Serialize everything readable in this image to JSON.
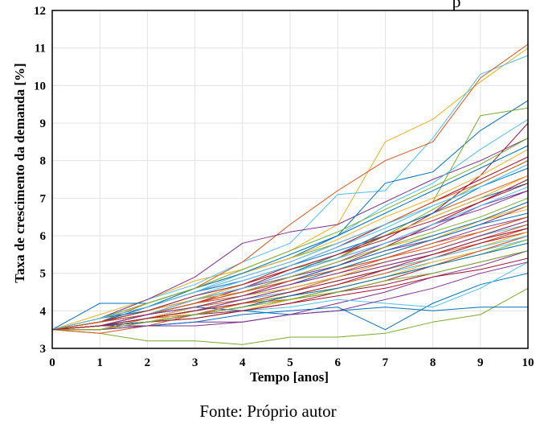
{
  "top_fragment": "p",
  "caption": "Fonte: Próprio autor",
  "chart_data": {
    "type": "line",
    "xlabel": "Tempo [anos]",
    "ylabel": "Taxa de crescimento da demanda [%]",
    "xlim": [
      0,
      10
    ],
    "ylim": [
      3,
      12
    ],
    "xticks": [
      "0",
      "1",
      "2",
      "3",
      "4",
      "5",
      "6",
      "7",
      "8",
      "9",
      "10"
    ],
    "yticks": [
      "3",
      "4",
      "5",
      "6",
      "7",
      "8",
      "9",
      "10",
      "11",
      "12"
    ],
    "grid": true,
    "x": [
      0,
      1,
      2,
      3,
      4,
      5,
      6,
      7,
      8,
      9,
      10
    ],
    "series": [
      {
        "color": "#0072BD",
        "values": [
          3.5,
          3.8,
          4.1,
          4.5,
          4.8,
          5.2,
          5.6,
          6.0,
          6.5,
          7.0,
          7.4
        ]
      },
      {
        "color": "#D95319",
        "values": [
          3.5,
          3.6,
          3.9,
          4.2,
          4.6,
          5.0,
          5.4,
          6.1,
          6.6,
          7.1,
          7.6
        ]
      },
      {
        "color": "#EDB120",
        "values": [
          3.5,
          3.9,
          4.3,
          4.8,
          5.1,
          5.6,
          6.3,
          8.5,
          9.1,
          10.1,
          11.0
        ]
      },
      {
        "color": "#7E2F8E",
        "values": [
          3.5,
          3.7,
          4.0,
          4.3,
          4.5,
          4.9,
          5.3,
          5.8,
          6.2,
          6.8,
          7.2
        ]
      },
      {
        "color": "#77AC30",
        "values": [
          3.5,
          3.4,
          3.2,
          3.2,
          3.1,
          3.3,
          3.3,
          3.4,
          3.7,
          3.9,
          4.6
        ]
      },
      {
        "color": "#4DBEEE",
        "values": [
          3.5,
          3.8,
          4.3,
          4.7,
          5.3,
          5.8,
          7.1,
          7.2,
          8.6,
          10.3,
          10.8
        ]
      },
      {
        "color": "#A2142F",
        "values": [
          3.5,
          3.6,
          3.9,
          4.1,
          4.4,
          4.8,
          5.2,
          5.7,
          6.3,
          6.9,
          7.5
        ]
      },
      {
        "color": "#0072BD",
        "values": [
          3.5,
          3.6,
          3.8,
          4.1,
          4.0,
          3.9,
          4.0,
          4.1,
          4.0,
          4.1,
          4.1
        ]
      },
      {
        "color": "#D95319",
        "values": [
          3.5,
          3.7,
          4.2,
          4.6,
          5.3,
          6.3,
          7.2,
          8.0,
          8.5,
          10.2,
          11.1
        ]
      },
      {
        "color": "#EDB120",
        "values": [
          3.5,
          3.6,
          3.8,
          4.1,
          4.4,
          4.7,
          5.1,
          5.5,
          5.9,
          6.4,
          6.9
        ]
      },
      {
        "color": "#7E2F8E",
        "values": [
          3.5,
          3.8,
          4.3,
          4.9,
          5.8,
          6.1,
          6.3,
          6.9,
          7.5,
          8.0,
          8.6
        ]
      },
      {
        "color": "#77AC30",
        "values": [
          3.5,
          3.7,
          4.0,
          4.4,
          4.7,
          5.1,
          5.4,
          6.0,
          6.7,
          7.4,
          8.0
        ]
      },
      {
        "color": "#4DBEEE",
        "values": [
          3.5,
          3.5,
          3.7,
          3.9,
          4.2,
          4.4,
          4.7,
          5.0,
          5.3,
          5.6,
          5.9
        ]
      },
      {
        "color": "#A2142F",
        "values": [
          3.5,
          3.6,
          3.7,
          3.8,
          4.0,
          4.3,
          4.5,
          4.8,
          5.2,
          5.6,
          6.0
        ]
      },
      {
        "color": "#0072BD",
        "values": [
          3.5,
          4.2,
          4.2,
          4.6,
          5.0,
          5.4,
          6.0,
          7.4,
          7.7,
          8.8,
          9.6
        ]
      },
      {
        "color": "#D95319",
        "values": [
          3.5,
          3.4,
          3.6,
          3.9,
          4.2,
          4.4,
          4.7,
          5.0,
          5.4,
          5.8,
          6.2
        ]
      },
      {
        "color": "#EDB120",
        "values": [
          3.5,
          3.7,
          4.0,
          4.3,
          4.6,
          4.9,
          5.3,
          5.7,
          6.0,
          6.4,
          6.7
        ]
      },
      {
        "color": "#7E2F8E",
        "values": [
          3.5,
          3.6,
          3.6,
          3.7,
          3.7,
          3.9,
          4.2,
          4.5,
          4.9,
          5.2,
          5.6
        ]
      },
      {
        "color": "#77AC30",
        "values": [
          3.5,
          3.8,
          4.1,
          4.6,
          5.0,
          5.4,
          5.8,
          6.3,
          6.9,
          9.2,
          9.4
        ]
      },
      {
        "color": "#4DBEEE",
        "values": [
          3.5,
          3.6,
          3.9,
          4.1,
          4.4,
          4.6,
          4.9,
          5.3,
          5.6,
          6.0,
          6.3
        ]
      },
      {
        "color": "#A2142F",
        "values": [
          3.5,
          3.7,
          3.9,
          4.2,
          4.6,
          5.1,
          5.5,
          5.9,
          6.6,
          7.6,
          9.0
        ]
      },
      {
        "color": "#0072BD",
        "values": [
          3.5,
          3.5,
          3.6,
          3.7,
          3.9,
          4.0,
          4.1,
          3.5,
          4.2,
          4.7,
          5.0
        ]
      },
      {
        "color": "#D95319",
        "values": [
          3.5,
          3.6,
          3.8,
          4.0,
          4.3,
          4.5,
          4.9,
          5.2,
          5.5,
          5.9,
          6.3
        ]
      },
      {
        "color": "#EDB120",
        "values": [
          3.5,
          3.5,
          3.7,
          3.8,
          4.0,
          4.3,
          4.6,
          4.9,
          5.3,
          5.6,
          6.0
        ]
      },
      {
        "color": "#7E2F8E",
        "values": [
          3.5,
          3.7,
          3.9,
          4.3,
          4.6,
          4.9,
          5.2,
          5.6,
          5.9,
          6.3,
          6.8
        ]
      },
      {
        "color": "#77AC30",
        "values": [
          3.5,
          3.6,
          3.8,
          4.0,
          4.3,
          4.6,
          4.9,
          5.3,
          5.6,
          6.0,
          6.4
        ]
      },
      {
        "color": "#4DBEEE",
        "values": [
          3.5,
          3.5,
          3.7,
          3.8,
          4.0,
          4.1,
          4.3,
          4.2,
          4.1,
          4.6,
          5.3
        ]
      },
      {
        "color": "#A2142F",
        "values": [
          3.5,
          3.6,
          3.9,
          4.3,
          4.7,
          5.2,
          5.7,
          6.3,
          6.9,
          7.5,
          8.1
        ]
      },
      {
        "color": "#0072BD",
        "values": [
          3.5,
          3.8,
          4.0,
          4.3,
          4.6,
          5.0,
          5.5,
          6.1,
          6.6,
          7.3,
          7.8
        ]
      },
      {
        "color": "#D95319",
        "values": [
          3.5,
          3.6,
          3.8,
          4.1,
          4.3,
          4.6,
          4.9,
          5.2,
          5.5,
          5.8,
          6.2
        ]
      },
      {
        "color": "#EDB120",
        "values": [
          3.5,
          3.7,
          4.0,
          4.3,
          4.5,
          4.8,
          5.1,
          5.5,
          5.9,
          6.4,
          6.8
        ]
      },
      {
        "color": "#7E2F8E",
        "values": [
          3.5,
          3.5,
          3.6,
          3.6,
          3.7,
          3.9,
          4.0,
          4.3,
          4.6,
          5.0,
          5.3
        ]
      },
      {
        "color": "#77AC30",
        "values": [
          3.5,
          3.6,
          3.8,
          4.0,
          4.2,
          4.4,
          4.6,
          4.9,
          5.2,
          5.5,
          5.9
        ]
      },
      {
        "color": "#4DBEEE",
        "values": [
          3.5,
          3.7,
          4.1,
          4.5,
          5.0,
          5.5,
          6.0,
          6.8,
          7.4,
          8.3,
          9.1
        ]
      },
      {
        "color": "#A2142F",
        "values": [
          3.5,
          3.6,
          3.7,
          3.9,
          4.1,
          4.4,
          4.7,
          5.1,
          5.4,
          5.8,
          6.1
        ]
      },
      {
        "color": "#0072BD",
        "values": [
          3.5,
          3.7,
          3.9,
          4.2,
          4.5,
          4.8,
          5.2,
          5.6,
          6.0,
          6.4,
          6.9
        ]
      },
      {
        "color": "#D95319",
        "values": [
          3.5,
          3.5,
          3.8,
          3.9,
          4.2,
          4.3,
          4.6,
          4.9,
          5.2,
          5.6,
          6.0
        ]
      },
      {
        "color": "#EDB120",
        "values": [
          3.5,
          3.8,
          4.2,
          4.6,
          5.0,
          5.4,
          5.9,
          6.5,
          7.0,
          7.6,
          8.3
        ]
      },
      {
        "color": "#7E2F8E",
        "values": [
          3.5,
          3.6,
          3.9,
          4.2,
          4.5,
          4.8,
          5.1,
          5.4,
          5.8,
          6.2,
          6.5
        ]
      },
      {
        "color": "#77AC30",
        "values": [
          3.5,
          3.6,
          3.7,
          3.9,
          4.1,
          4.3,
          4.6,
          4.9,
          5.2,
          5.5,
          5.8
        ]
      },
      {
        "color": "#4DBEEE",
        "values": [
          3.5,
          3.7,
          4.0,
          4.4,
          4.8,
          5.2,
          5.7,
          6.2,
          6.8,
          7.3,
          7.9
        ]
      },
      {
        "color": "#A2142F",
        "values": [
          3.5,
          3.5,
          3.7,
          3.9,
          4.0,
          4.2,
          4.5,
          4.7,
          5.0,
          5.3,
          5.6
        ]
      },
      {
        "color": "#0072BD",
        "values": [
          3.5,
          3.6,
          3.8,
          4.1,
          4.4,
          4.7,
          5.1,
          5.5,
          5.9,
          6.3,
          6.6
        ]
      },
      {
        "color": "#D95319",
        "values": [
          3.5,
          3.7,
          4.1,
          4.5,
          4.9,
          5.3,
          5.8,
          6.3,
          6.9,
          7.4,
          8.0
        ]
      },
      {
        "color": "#EDB120",
        "values": [
          3.5,
          3.5,
          3.7,
          4.0,
          4.2,
          4.5,
          4.8,
          5.1,
          5.4,
          5.7,
          6.1
        ]
      },
      {
        "color": "#7E2F8E",
        "values": [
          3.5,
          3.7,
          4.0,
          4.3,
          4.6,
          5.0,
          5.4,
          5.8,
          6.3,
          6.7,
          7.2
        ]
      },
      {
        "color": "#77AC30",
        "values": [
          3.5,
          3.6,
          3.9,
          4.2,
          4.5,
          4.9,
          5.3,
          5.7,
          6.1,
          6.5,
          7.0
        ]
      },
      {
        "color": "#4DBEEE",
        "values": [
          3.5,
          3.6,
          3.8,
          4.0,
          4.3,
          4.5,
          4.8,
          5.1,
          5.4,
          5.7,
          6.0
        ]
      },
      {
        "color": "#A2142F",
        "values": [
          3.5,
          3.6,
          3.7,
          3.8,
          4.0,
          4.2,
          4.4,
          4.6,
          4.9,
          5.1,
          5.4
        ]
      },
      {
        "color": "#0072BD",
        "values": [
          3.5,
          3.7,
          4.1,
          4.6,
          5.0,
          5.5,
          6.0,
          6.6,
          7.2,
          7.8,
          8.4
        ]
      },
      {
        "color": "#D95319",
        "values": [
          3.5,
          3.6,
          3.9,
          4.2,
          4.5,
          4.8,
          5.1,
          5.4,
          5.8,
          6.1,
          6.5
        ]
      },
      {
        "color": "#EDB120",
        "values": [
          3.5,
          3.7,
          4.0,
          4.3,
          4.7,
          5.1,
          5.5,
          6.0,
          6.5,
          7.0,
          7.6
        ]
      },
      {
        "color": "#7E2F8E",
        "values": [
          3.5,
          3.6,
          3.8,
          4.0,
          4.3,
          4.6,
          4.9,
          5.2,
          5.5,
          5.9,
          6.2
        ]
      },
      {
        "color": "#77AC30",
        "values": [
          3.5,
          3.8,
          4.2,
          4.6,
          5.1,
          5.6,
          6.1,
          6.7,
          7.3,
          7.9,
          8.6
        ]
      },
      {
        "color": "#4DBEEE",
        "values": [
          3.5,
          3.6,
          3.9,
          4.3,
          4.6,
          5.0,
          5.4,
          5.8,
          6.3,
          6.8,
          7.3
        ]
      },
      {
        "color": "#A2142F",
        "values": [
          3.5,
          3.7,
          4.0,
          4.4,
          4.7,
          5.1,
          5.5,
          6.0,
          6.4,
          6.9,
          7.4
        ]
      },
      {
        "color": "#0072BD",
        "values": [
          3.5,
          3.6,
          3.7,
          3.9,
          4.1,
          4.4,
          4.6,
          4.9,
          5.2,
          5.5,
          5.8
        ]
      },
      {
        "color": "#D95319",
        "values": [
          3.5,
          3.7,
          3.9,
          4.2,
          4.4,
          4.7,
          5.0,
          5.4,
          5.7,
          6.1,
          6.5
        ]
      },
      {
        "color": "#EDB120",
        "values": [
          3.5,
          3.6,
          3.8,
          4.1,
          4.4,
          4.6,
          4.9,
          5.3,
          5.6,
          6.0,
          6.4
        ]
      },
      {
        "color": "#7E2F8E",
        "values": [
          3.5,
          3.6,
          3.9,
          4.1,
          4.4,
          4.7,
          5.0,
          5.3,
          5.6,
          6.0,
          6.4
        ]
      },
      {
        "color": "#77AC30",
        "values": [
          3.5,
          3.5,
          3.7,
          3.9,
          4.1,
          4.3,
          4.5,
          4.8,
          5.0,
          5.3,
          5.6
        ]
      },
      {
        "color": "#4DBEEE",
        "values": [
          3.5,
          3.8,
          4.1,
          4.5,
          4.9,
          5.3,
          5.8,
          6.3,
          6.8,
          7.3,
          7.9
        ]
      },
      {
        "color": "#A2142F",
        "values": [
          3.5,
          3.6,
          3.8,
          4.0,
          4.2,
          4.5,
          4.8,
          5.1,
          5.5,
          5.9,
          6.2
        ]
      }
    ]
  }
}
